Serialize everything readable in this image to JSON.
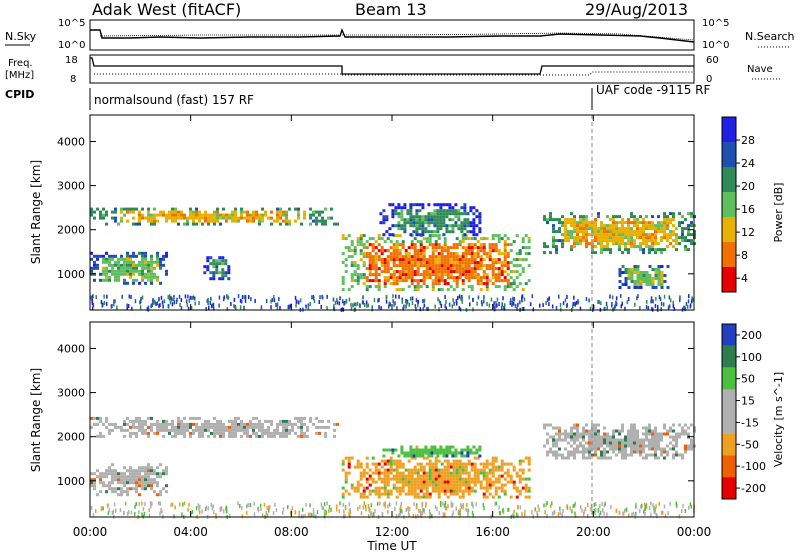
{
  "header": {
    "station": "Adak West (fitACF)",
    "beam": "Beam 13",
    "date": "29/Aug/2013"
  },
  "status_panels": {
    "noise_left_label": "N.Sky",
    "noise_right_label": "N.Search",
    "noise_left_ticks": [
      "10^5",
      "10^0"
    ],
    "noise_right_ticks": [
      "10^5",
      "10^0"
    ],
    "freq_label_line1": "Freq.",
    "freq_label_line2": "[MHz]",
    "freq_ticks": [
      "18",
      "8"
    ],
    "nave_label": "Nave",
    "nave_ticks": [
      "60",
      "0"
    ],
    "cpid_label": "CPID",
    "cpid_text_1": "normalsound (fast) 157 RF",
    "cpid_text_2": "UAF code -9115 RF"
  },
  "chart_data": [
    {
      "type": "heatmap",
      "name": "power",
      "ylabel": "Slant Range [km]",
      "xlabel": "",
      "x_ticks": [
        "00:00",
        "04:00",
        "08:00",
        "12:00",
        "16:00",
        "20:00",
        "00:00"
      ],
      "xlim_hours": [
        0,
        24
      ],
      "y_ticks": [
        1000,
        2000,
        3000,
        4000
      ],
      "ylim_km": [
        180,
        4600
      ],
      "colorbar": {
        "label": "Power [dB]",
        "ticks": [
          "4",
          "8",
          "12",
          "16",
          "20",
          "24",
          "28"
        ],
        "colors": [
          "#1f1fe6",
          "#1f4fb0",
          "#2e8b57",
          "#5fbf5f",
          "#e8b000",
          "#f07000",
          "#e60000"
        ]
      },
      "echo_regions": [
        {
          "t0": 0.0,
          "t1": 9.8,
          "r0": 2150,
          "r1": 2500,
          "level": 4
        },
        {
          "t0": 0.0,
          "t1": 3.0,
          "r0": 800,
          "r1": 1500,
          "level": 3
        },
        {
          "t0": 4.5,
          "t1": 5.5,
          "r0": 900,
          "r1": 1400,
          "level": 2
        },
        {
          "t0": 10.0,
          "t1": 17.5,
          "r0": 650,
          "r1": 1900,
          "level": 5
        },
        {
          "t0": 11.5,
          "t1": 15.5,
          "r0": 1900,
          "r1": 2600,
          "level": 2
        },
        {
          "t0": 18.0,
          "t1": 24.0,
          "r0": 1500,
          "r1": 2400,
          "level": 4
        },
        {
          "t0": 21.0,
          "t1": 23.0,
          "r0": 700,
          "r1": 1200,
          "level": 3
        }
      ]
    },
    {
      "type": "heatmap",
      "name": "velocity",
      "ylabel": "Slant Range [km]",
      "xlabel": "Time UT",
      "x_ticks": [
        "00:00",
        "04:00",
        "08:00",
        "12:00",
        "16:00",
        "20:00",
        "00:00"
      ],
      "xlim_hours": [
        0,
        24
      ],
      "y_ticks": [
        1000,
        2000,
        3000,
        4000
      ],
      "ylim_km": [
        180,
        4600
      ],
      "colorbar": {
        "label": "Velocity [m s^-1]",
        "ticks": [
          "200",
          "100",
          "50",
          "15",
          "-15",
          "-50",
          "-100",
          "-200"
        ],
        "colors": [
          "#2040c0",
          "#2e7d4f",
          "#4cbf3f",
          "#b0b0b0",
          "#b0b0b0",
          "#f0a020",
          "#f06000",
          "#e60000"
        ]
      },
      "echo_regions": [
        {
          "t0": 0.0,
          "t1": 9.8,
          "r0": 2000,
          "r1": 2450,
          "level": 0
        },
        {
          "t0": 0.0,
          "t1": 3.0,
          "r0": 700,
          "r1": 1400,
          "level": 0
        },
        {
          "t0": 10.0,
          "t1": 17.5,
          "r0": 600,
          "r1": 1550,
          "level": -50
        },
        {
          "t0": 11.5,
          "t1": 15.5,
          "r0": 1550,
          "r1": 1800,
          "level": 50
        },
        {
          "t0": 18.0,
          "t1": 24.0,
          "r0": 1500,
          "r1": 2300,
          "level": 0
        }
      ]
    }
  ]
}
